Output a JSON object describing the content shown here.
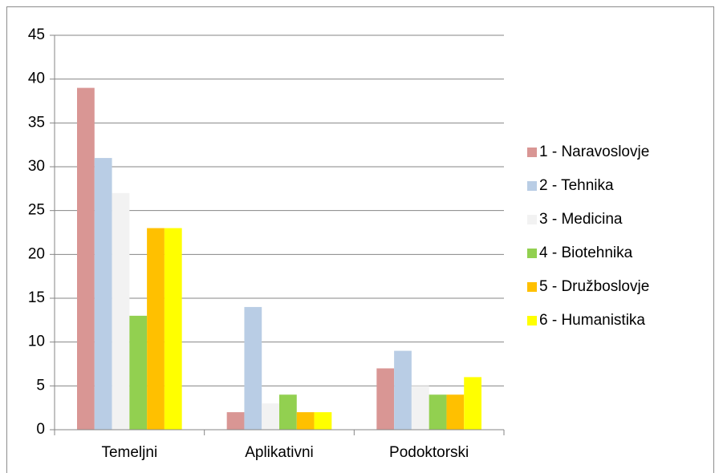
{
  "chart_data": {
    "type": "bar",
    "categories": [
      "Temeljni",
      "Aplikativni",
      "Podoktorski"
    ],
    "series": [
      {
        "name": "1 - Naravoslovje",
        "color": "#d99694",
        "values": [
          39,
          2,
          7
        ]
      },
      {
        "name": "2 - Tehnika",
        "color": "#b9cde5",
        "values": [
          31,
          14,
          9
        ]
      },
      {
        "name": "3 - Medicina",
        "color": "#f2f2f2",
        "values": [
          27,
          3,
          5
        ]
      },
      {
        "name": "4 - Biotehnika",
        "color": "#92d050",
        "values": [
          13,
          4,
          4
        ]
      },
      {
        "name": "5 - Družboslovje",
        "color": "#ffc000",
        "values": [
          23,
          2,
          4
        ]
      },
      {
        "name": "6 - Humanistika",
        "color": "#ffff00",
        "values": [
          23,
          2,
          6
        ]
      }
    ],
    "ylim": [
      0,
      45
    ],
    "yticks": [
      0,
      5,
      10,
      15,
      20,
      25,
      30,
      35,
      40,
      45
    ],
    "grid": true,
    "legend": "right"
  }
}
